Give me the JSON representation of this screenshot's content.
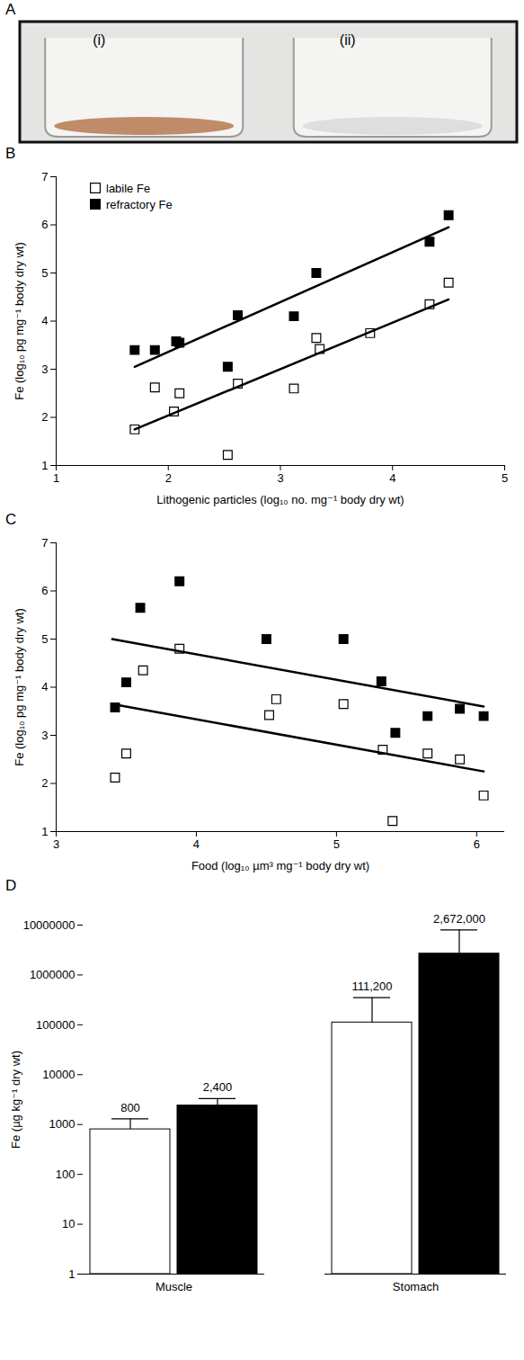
{
  "image": {
    "panel": "A",
    "labels": [
      "(i)",
      "(ii)"
    ]
  },
  "chart_data": [
    {
      "type": "scatter",
      "panel": "B",
      "x_label": "Lithogenic particles (log₁₀ no. mg⁻¹ body dry wt)",
      "y_label": "Fe (log₁₀ pg mg⁻¹ body dry wt)",
      "xlim": [
        1,
        5
      ],
      "xticks": [
        1,
        2,
        3,
        4,
        5
      ],
      "ylim": [
        1,
        7
      ],
      "yticks": [
        1,
        2,
        3,
        4,
        5,
        6,
        7
      ],
      "legend": "upper left",
      "series": [
        {
          "name": "labile Fe",
          "marker": "open_square",
          "color": "#000000",
          "x": [
            1.7,
            1.88,
            2.05,
            2.1,
            2.53,
            2.62,
            3.12,
            3.32,
            3.35,
            3.8,
            4.33,
            4.5
          ],
          "values": [
            1.75,
            2.62,
            2.12,
            2.5,
            1.22,
            2.7,
            2.6,
            3.65,
            3.42,
            3.75,
            4.35,
            4.8
          ]
        },
        {
          "name": "refractory Fe",
          "marker": "square",
          "color": "#000000",
          "x": [
            1.7,
            1.88,
            2.07,
            2.1,
            2.53,
            2.62,
            3.12,
            3.32,
            4.33,
            4.5
          ],
          "values": [
            3.4,
            3.4,
            3.58,
            3.55,
            3.05,
            4.12,
            4.1,
            5.0,
            5.65,
            6.2
          ]
        },
        {
          "type": "line",
          "color": "#000000",
          "x": [
            1.7,
            4.5
          ],
          "values": [
            1.75,
            4.45
          ]
        },
        {
          "type": "line",
          "color": "#000000",
          "x": [
            1.7,
            4.5
          ],
          "values": [
            3.05,
            5.95
          ]
        }
      ]
    },
    {
      "type": "scatter",
      "panel": "C",
      "x_label": "Food (log₁₀ µm³ mg⁻¹ body dry wt)",
      "y_label": "Fe (log₁₀ pg mg⁻¹ body dry wt)",
      "xlim": [
        3,
        6.2
      ],
      "xticks": [
        3,
        4,
        5,
        6
      ],
      "ylim": [
        1,
        7
      ],
      "yticks": [
        1,
        2,
        3,
        4,
        5,
        6,
        7
      ],
      "series": [
        {
          "marker": "open_square",
          "color": "#000000",
          "x": [
            3.42,
            3.5,
            3.62,
            3.88,
            4.52,
            4.57,
            5.05,
            5.33,
            5.4,
            5.65,
            5.88,
            6.05
          ],
          "values": [
            2.12,
            2.62,
            4.35,
            4.8,
            3.42,
            3.75,
            3.65,
            2.7,
            1.22,
            2.62,
            2.5,
            1.75
          ]
        },
        {
          "marker": "square",
          "color": "#000000",
          "x": [
            3.42,
            3.5,
            3.6,
            3.88,
            4.5,
            5.05,
            5.32,
            5.42,
            5.65,
            5.88,
            6.05
          ],
          "values": [
            3.58,
            4.1,
            5.65,
            6.2,
            5.0,
            5.0,
            4.12,
            3.05,
            3.4,
            3.55,
            3.4
          ]
        },
        {
          "type": "line",
          "color": "#000000",
          "x": [
            3.4,
            6.05
          ],
          "values": [
            3.65,
            2.25
          ]
        },
        {
          "type": "line",
          "color": "#000000",
          "x": [
            3.4,
            6.05
          ],
          "values": [
            5.0,
            3.6
          ]
        }
      ]
    },
    {
      "type": "bar",
      "panel": "D",
      "y_label": "Fe (µg kg⁻¹ dry wt)",
      "log": "y",
      "categories": [
        "Muscle",
        "Stomach"
      ],
      "ylim": [
        1,
        10000000
      ],
      "yticks": [
        1,
        10,
        100,
        1000,
        10000,
        100000,
        1000000,
        10000000
      ],
      "data_labels": true,
      "series": [
        {
          "color": "#ffffff",
          "values": [
            800,
            111200
          ],
          "value_labels": [
            "800",
            "111,200"
          ],
          "error_top": [
            1300,
            350000
          ]
        },
        {
          "color": "#000000",
          "values": [
            2400,
            2672000
          ],
          "value_labels": [
            "2,400",
            "2,672,000"
          ],
          "error_top": [
            3300,
            8000000
          ]
        }
      ]
    }
  ]
}
